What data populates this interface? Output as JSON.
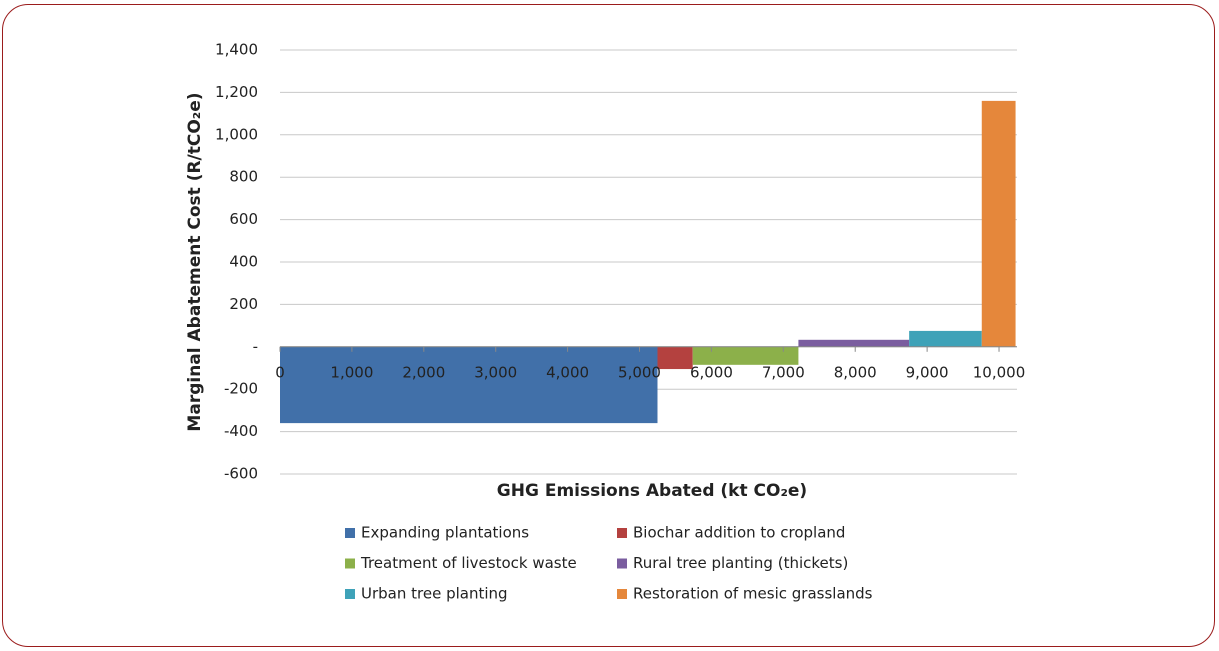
{
  "chart_data": {
    "type": "mac-curve",
    "x_label": "GHG Emissions Abated (kt CO₂e)",
    "y_label": "Marginal Abatement Cost (R/tCO₂e)",
    "xlim": [
      0,
      10250
    ],
    "xticks": [
      0,
      {
        "value": 1000,
        "label": "1,000"
      },
      {
        "value": 2000,
        "label": "2,000"
      },
      {
        "value": 3000,
        "label": "3,000"
      },
      {
        "value": 4000,
        "label": "4,000"
      },
      {
        "value": 5000,
        "label": "5,000"
      },
      {
        "value": 6000,
        "label": "6,000"
      },
      {
        "value": 7000,
        "label": "7,000"
      },
      {
        "value": 8000,
        "label": "8,000"
      },
      {
        "value": 9000,
        "label": "9,000"
      },
      {
        "value": 10000,
        "label": "10,000"
      }
    ],
    "ylim": [
      -600,
      1400
    ],
    "yticks": [
      -600,
      -400,
      -200,
      {
        "value": 0,
        "label": "-"
      },
      200,
      400,
      600,
      800,
      {
        "value": 1000,
        "label": "1,000"
      },
      {
        "value": 1200,
        "label": "1,200"
      },
      {
        "value": 1400,
        "label": "1,400"
      }
    ],
    "grid": true,
    "series": [
      {
        "name": "Expanding plantations",
        "color": "#4170a9",
        "values": [
          -360
        ],
        "widths": [
          5250
        ]
      },
      {
        "name": "Biochar addition to cropland",
        "color": "#b4413f",
        "values": [
          -105
        ],
        "widths": [
          490
        ]
      },
      {
        "name": "Treatment of livestock waste",
        "color": "#8cb04a",
        "values": [
          -85
        ],
        "widths": [
          1470
        ]
      },
      {
        "name": "Rural tree planting (thickets)",
        "color": "#7a5d9f",
        "values": [
          33
        ],
        "widths": [
          1540
        ]
      },
      {
        "name": "Urban tree planting",
        "color": "#3ea2b8",
        "values": [
          75
        ],
        "widths": [
          1010
        ]
      },
      {
        "name": "Restoration of mesic grasslands",
        "color": "#e5873b",
        "values": [
          1160
        ],
        "widths": [
          470
        ]
      }
    ]
  }
}
